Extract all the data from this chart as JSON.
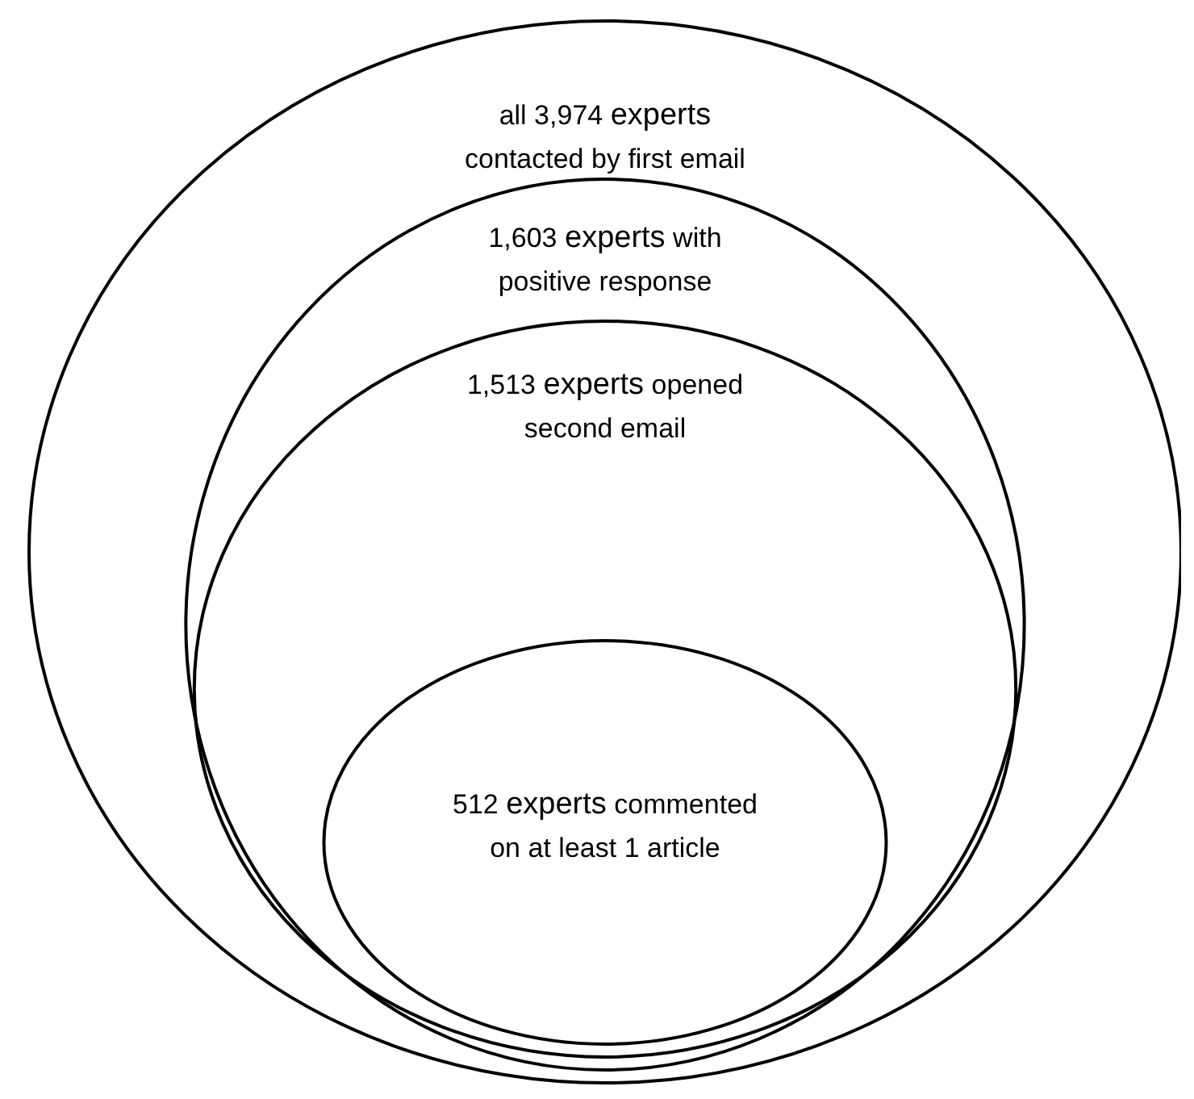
{
  "chart_data": {
    "type": "other",
    "categories": [
      "experts contacted by first email",
      "experts with positive response",
      "experts opened second email",
      "experts commented on at least 1 article"
    ],
    "values": [
      3974,
      1603,
      1513,
      512
    ],
    "value_labels": [
      "all 3,974",
      "1,603",
      "1,513",
      "512"
    ]
  }
}
